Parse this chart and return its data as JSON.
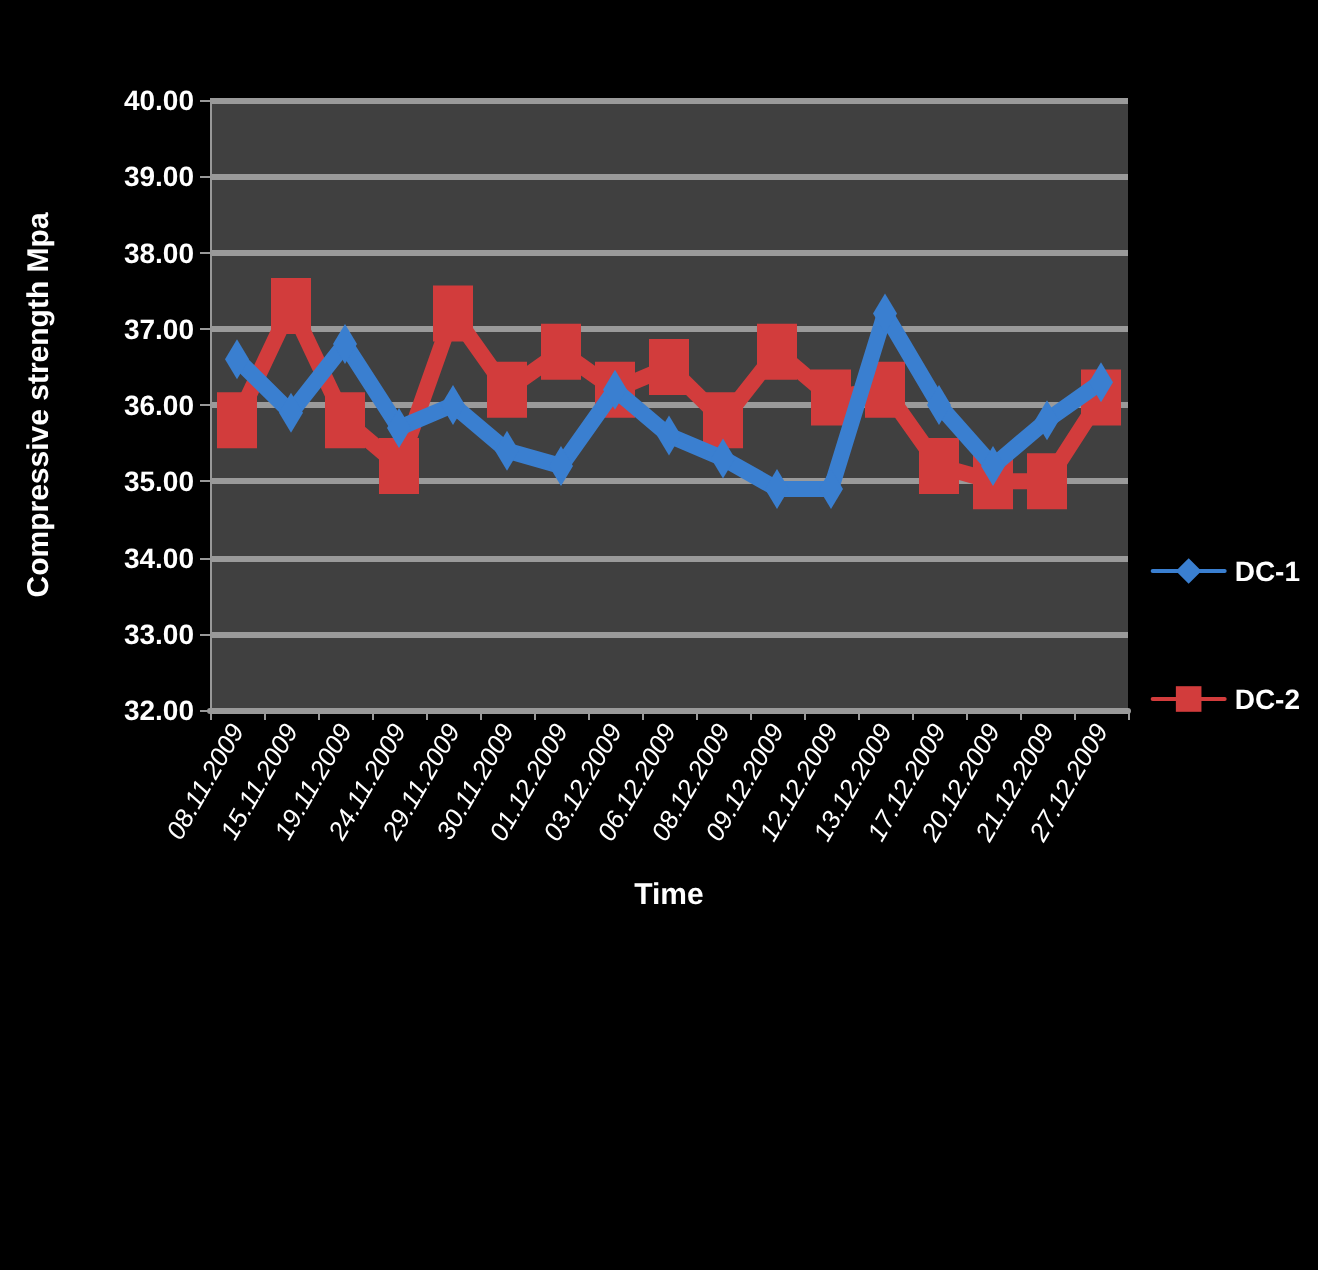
{
  "chart_data": {
    "type": "line",
    "xlabel": "Time",
    "ylabel": "Compressive strength Mpa",
    "categories": [
      "08.11.2009",
      "15.11.2009",
      "19.11.2009",
      "24.11.2009",
      "29.11.2009",
      "30.11.2009",
      "01.12.2009",
      "03.12.2009",
      "06.12.2009",
      "08.12.2009",
      "09.12.2009",
      "12.12.2009",
      "13.12.2009",
      "17.12.2009",
      "20.12.2009",
      "21.12.2009",
      "27.12.2009"
    ],
    "series": [
      {
        "name": "DC-1",
        "color": "#3a7fd0",
        "marker": "diamond",
        "values": [
          36.6,
          35.9,
          36.8,
          35.7,
          36.0,
          35.4,
          35.2,
          36.2,
          35.6,
          35.3,
          34.9,
          34.9,
          37.2,
          36.0,
          35.2,
          35.8,
          36.3
        ]
      },
      {
        "name": "DC-2",
        "color": "#d23c3c",
        "marker": "square",
        "values": [
          35.8,
          37.3,
          35.8,
          35.2,
          37.2,
          36.2,
          36.7,
          36.2,
          36.5,
          35.8,
          36.7,
          36.1,
          36.2,
          35.2,
          35.0,
          35.0,
          36.1
        ]
      }
    ],
    "ylim": [
      32,
      40
    ],
    "yticks": [
      {
        "value": 32,
        "label": "32.00"
      },
      {
        "value": 33,
        "label": "33.00"
      },
      {
        "value": 34,
        "label": "34.00"
      },
      {
        "value": 35,
        "label": "35.00"
      },
      {
        "value": 36,
        "label": "36.00"
      },
      {
        "value": 37,
        "label": "37.00"
      },
      {
        "value": 38,
        "label": "38.00"
      },
      {
        "value": 39,
        "label": "39.00"
      },
      {
        "value": 40,
        "label": "40.00"
      }
    ],
    "grid": "y",
    "legend": "right"
  }
}
